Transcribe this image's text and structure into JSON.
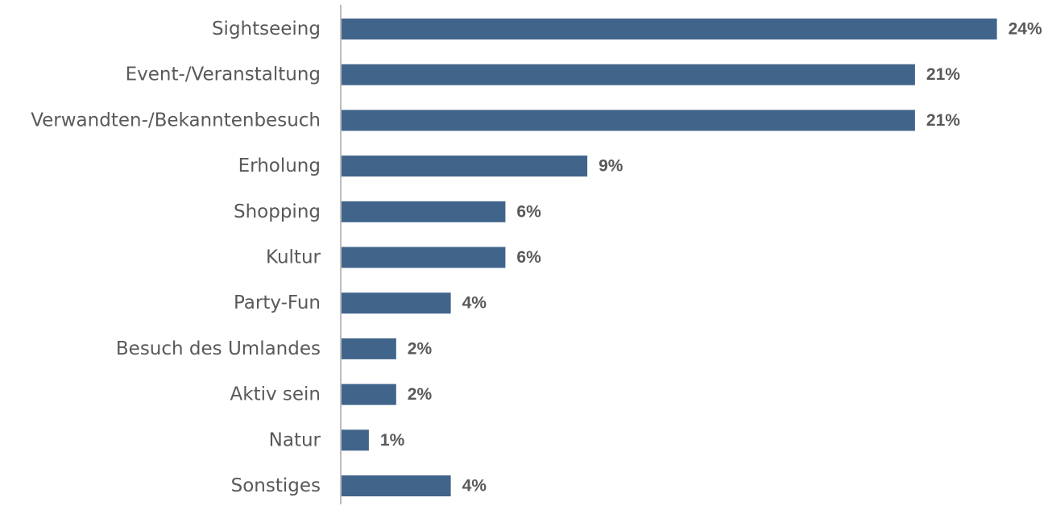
{
  "colors": {
    "bar": "#41648A",
    "category_text": "#595959",
    "value_text": "#595959",
    "axis": "#A6A6A6"
  },
  "chart_data": {
    "type": "bar",
    "orientation": "horizontal",
    "categories": [
      "Sightseeing",
      "Event-/Veranstaltung",
      "Verwandten-/Bekanntenbesuch",
      "Erholung",
      "Shopping",
      "Kultur",
      "Party-Fun",
      "Besuch des Umlandes",
      "Aktiv sein",
      "Natur",
      "Sonstiges"
    ],
    "values": [
      24,
      21,
      21,
      9,
      6,
      6,
      4,
      2,
      2,
      1,
      4
    ],
    "value_labels": [
      "24%",
      "21%",
      "21%",
      "9%",
      "6%",
      "6%",
      "4%",
      "2%",
      "2%",
      "1%",
      "4%"
    ],
    "unit": "%",
    "grid": false,
    "legend": "none"
  }
}
